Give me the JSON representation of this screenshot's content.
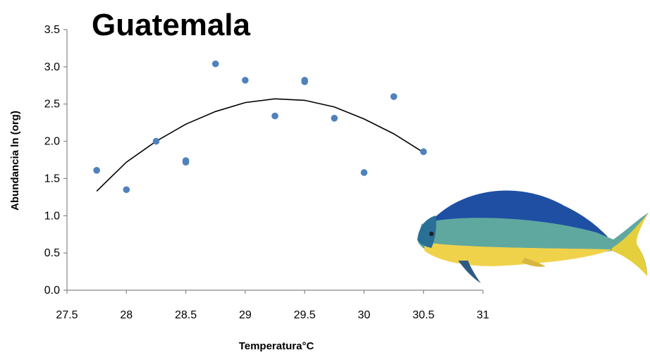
{
  "chart_data": {
    "type": "scatter",
    "title": "Guatemala",
    "xlabel": "Temperatura°C",
    "ylabel": "Abundancia  ln (org)",
    "xlim": [
      27.5,
      31
    ],
    "ylim": [
      0,
      3.5
    ],
    "xticks": [
      "27.5",
      "28",
      "28.5",
      "29",
      "29.5",
      "30",
      "30.5",
      "31"
    ],
    "yticks": [
      "0.0",
      "0.5",
      "1.0",
      "1.5",
      "2.0",
      "2.5",
      "3.0",
      "3.5"
    ],
    "grid": false,
    "series": [
      {
        "points": [
          {
            "x": 27.75,
            "y": 1.61
          },
          {
            "x": 28.0,
            "y": 1.35
          },
          {
            "x": 28.25,
            "y": 2.0
          },
          {
            "x": 28.5,
            "y": 1.72
          },
          {
            "x": 28.5,
            "y": 1.74
          },
          {
            "x": 28.75,
            "y": 3.04
          },
          {
            "x": 29.0,
            "y": 2.82
          },
          {
            "x": 29.25,
            "y": 2.34
          },
          {
            "x": 29.5,
            "y": 2.8
          },
          {
            "x": 29.5,
            "y": 2.82
          },
          {
            "x": 29.75,
            "y": 2.31
          },
          {
            "x": 30.0,
            "y": 1.58
          },
          {
            "x": 30.25,
            "y": 2.6
          },
          {
            "x": 30.5,
            "y": 1.86
          }
        ],
        "color": "#4f81bd"
      }
    ],
    "trendline": {
      "type": "polynomial",
      "x": [
        27.75,
        28.0,
        28.25,
        28.5,
        28.75,
        29.0,
        29.25,
        29.5,
        29.75,
        30.0,
        30.25,
        30.5
      ],
      "y": [
        1.33,
        1.72,
        2.0,
        2.23,
        2.4,
        2.52,
        2.57,
        2.55,
        2.46,
        2.3,
        2.1,
        1.85
      ]
    }
  },
  "image": {
    "icon": "dorado-fish-illustration"
  }
}
